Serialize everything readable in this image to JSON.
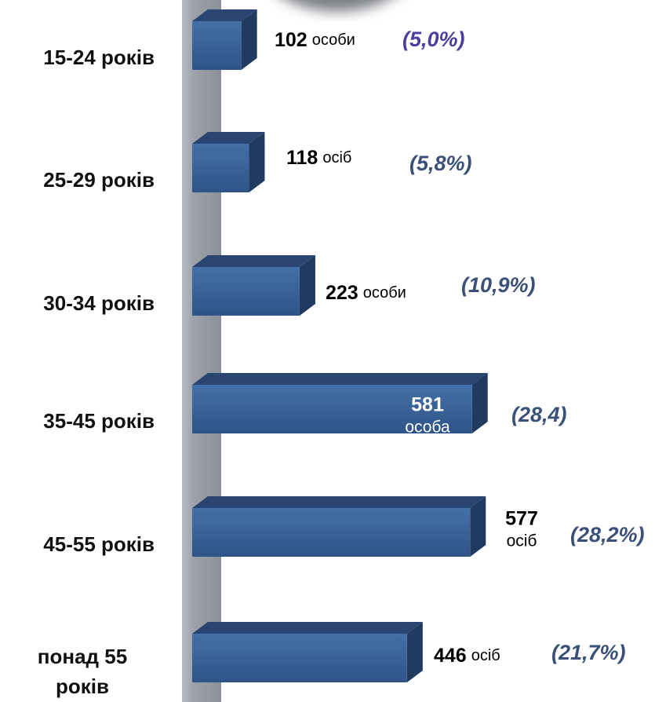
{
  "chart_data": {
    "type": "bar",
    "categories": [
      "15-24 років",
      "25-29 років",
      "30-34 років",
      "35-45 років",
      "45-55 років",
      "понад 55 років"
    ],
    "values": [
      102,
      118,
      223,
      581,
      577,
      446
    ],
    "unit_labels": [
      "особи",
      "осіб",
      "особи",
      "особа",
      "осіб",
      "осіб"
    ],
    "shares": [
      5.0,
      5.8,
      10.9,
      28.4,
      28.2,
      21.7
    ],
    "share_labels": [
      "(5,0%)",
      "(5,8%)",
      "(10,9%)",
      "(28,4)",
      "(28,2%)",
      "(21,7%)"
    ],
    "share_colors": [
      "#4a3f9e",
      "#3b5078",
      "#3b5078",
      "#3b5078",
      "#3b5078",
      "#3b5078"
    ],
    "color": "#3a6198"
  }
}
